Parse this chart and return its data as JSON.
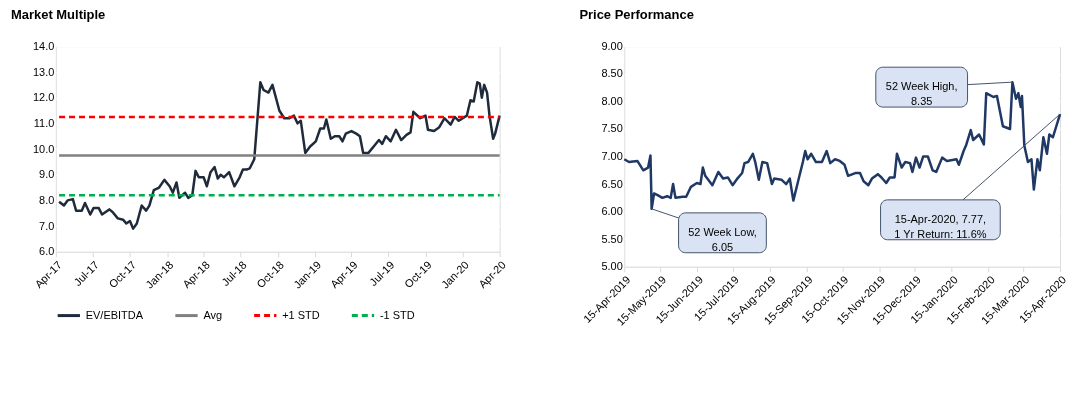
{
  "chart_data": [
    {
      "type": "line",
      "title": "Market Multiple",
      "x": [
        "2017-04-09",
        "2017-04-21",
        "2017-04-30",
        "2017-05-13",
        "2017-05-21",
        "2017-06-04",
        "2017-06-12",
        "2017-06-25",
        "2017-07-03",
        "2017-07-16",
        "2017-07-24",
        "2017-08-11",
        "2017-08-19",
        "2017-09-01",
        "2017-09-14",
        "2017-09-22",
        "2017-10-01",
        "2017-10-09",
        "2017-10-18",
        "2017-10-30",
        "2017-11-10",
        "2017-11-18",
        "2017-11-29",
        "2017-12-12",
        "2017-12-25",
        "2018-01-07",
        "2018-01-15",
        "2018-01-24",
        "2018-01-31",
        "2018-02-14",
        "2018-02-22",
        "2018-03-04",
        "2018-03-12",
        "2018-03-20",
        "2018-04-01",
        "2018-04-09",
        "2018-04-18",
        "2018-04-28",
        "2018-05-06",
        "2018-05-13",
        "2018-05-21",
        "2018-06-03",
        "2018-06-16",
        "2018-06-29",
        "2018-07-07",
        "2018-07-16",
        "2018-07-24",
        "2018-08-04",
        "2018-08-19",
        "2018-08-27",
        "2018-09-08",
        "2018-09-18",
        "2018-10-05",
        "2018-10-17",
        "2018-10-30",
        "2018-11-10",
        "2018-11-19",
        "2018-11-27",
        "2018-12-08",
        "2018-12-20",
        "2019-01-03",
        "2019-01-14",
        "2019-01-23",
        "2019-01-29",
        "2019-02-09",
        "2019-02-19",
        "2019-03-02",
        "2019-03-10",
        "2019-03-18",
        "2019-04-01",
        "2019-04-13",
        "2019-04-22",
        "2019-04-30",
        "2019-05-13",
        "2019-05-26",
        "2019-06-08",
        "2019-06-16",
        "2019-06-25",
        "2019-07-07",
        "2019-07-20",
        "2019-08-02",
        "2019-08-15",
        "2019-08-25",
        "2019-09-01",
        "2019-09-18",
        "2019-10-01",
        "2019-10-07",
        "2019-10-22",
        "2019-11-04",
        "2019-11-17",
        "2019-12-02",
        "2019-12-12",
        "2019-12-22",
        "2020-01-01",
        "2020-01-11",
        "2020-01-20",
        "2020-01-28",
        "2020-02-06",
        "2020-02-12",
        "2020-02-17",
        "2020-02-23",
        "2020-03-01",
        "2020-03-07",
        "2020-03-16",
        "2020-03-21",
        "2020-04-01"
      ],
      "series": [
        {
          "name": "EV/EBITDA",
          "color": "#1f2a3a",
          "line_style": "solid",
          "values": [
            7.95,
            7.8,
            8.0,
            8.05,
            7.6,
            7.6,
            7.9,
            7.45,
            7.7,
            7.7,
            7.45,
            7.65,
            7.55,
            7.3,
            7.25,
            7.1,
            7.2,
            6.9,
            7.1,
            7.8,
            7.6,
            7.8,
            8.4,
            8.5,
            8.8,
            8.55,
            8.3,
            8.7,
            8.1,
            8.3,
            8.1,
            8.2,
            9.15,
            8.9,
            8.9,
            8.55,
            9.1,
            9.3,
            8.85,
            9.0,
            8.9,
            9.1,
            8.55,
            8.9,
            9.2,
            9.2,
            9.25,
            9.6,
            12.6,
            12.3,
            12.2,
            12.5,
            11.5,
            11.2,
            11.2,
            11.3,
            11.0,
            11.1,
            9.85,
            10.1,
            10.3,
            10.8,
            10.8,
            11.15,
            10.4,
            10.5,
            10.5,
            10.3,
            10.6,
            10.7,
            10.6,
            10.5,
            9.85,
            9.85,
            10.1,
            10.35,
            10.2,
            10.5,
            10.3,
            10.75,
            10.35,
            10.55,
            10.65,
            11.45,
            11.2,
            11.3,
            10.75,
            10.7,
            10.85,
            11.2,
            10.95,
            11.25,
            11.1,
            11.2,
            11.3,
            11.9,
            11.85,
            12.6,
            12.55,
            12.0,
            12.5,
            12.2,
            11.3,
            10.4,
            10.6,
            11.3
          ]
        },
        {
          "name": "Avg",
          "color": "#808080",
          "line_style": "solid",
          "x": [
            "2017-04-09",
            "2020-04-01"
          ],
          "values": [
            9.75,
            9.75
          ]
        },
        {
          "name": "+1 STD",
          "color": "#ff0000",
          "line_style": "dashed",
          "x": [
            "2017-04-09",
            "2020-04-01"
          ],
          "values": [
            11.25,
            11.25
          ]
        },
        {
          "name": "-1 STD",
          "color": "#00b050",
          "line_style": "dashed",
          "x": [
            "2017-04-09",
            "2020-04-01"
          ],
          "values": [
            8.2,
            8.2
          ]
        }
      ],
      "xlim": [
        "2017-04-01",
        "2020-04-01"
      ],
      "xticks": [
        {
          "value": "2017-04-01",
          "label": "Apr-17"
        },
        {
          "value": "2017-07-01",
          "label": "Jul-17"
        },
        {
          "value": "2017-10-01",
          "label": "Oct-17"
        },
        {
          "value": "2018-01-01",
          "label": "Jan-18"
        },
        {
          "value": "2018-04-01",
          "label": "Apr-18"
        },
        {
          "value": "2018-07-01",
          "label": "Jul-18"
        },
        {
          "value": "2018-10-01",
          "label": "Oct-18"
        },
        {
          "value": "2019-01-01",
          "label": "Jan-19"
        },
        {
          "value": "2019-04-01",
          "label": "Apr-19"
        },
        {
          "value": "2019-07-01",
          "label": "Jul-19"
        },
        {
          "value": "2019-10-01",
          "label": "Oct-19"
        },
        {
          "value": "2020-01-01",
          "label": "Jan-20"
        },
        {
          "value": "2020-04-01",
          "label": "Apr-20"
        }
      ],
      "ylim": [
        6,
        14
      ],
      "yticks": [
        {
          "value": 6,
          "label": "6.0"
        },
        {
          "value": 7,
          "label": "7.0"
        },
        {
          "value": 8,
          "label": "8.0"
        },
        {
          "value": 9,
          "label": "9.0"
        },
        {
          "value": 10,
          "label": "10.0"
        },
        {
          "value": 11,
          "label": "11.0"
        },
        {
          "value": 12,
          "label": "12.0"
        },
        {
          "value": 13,
          "label": "13.0"
        },
        {
          "value": 14,
          "label": "14.0"
        }
      ],
      "grid": "y",
      "legend": "bottom",
      "marker": "none"
    },
    {
      "type": "line",
      "title": "Price Performance",
      "x": [
        "2019-04-15",
        "2019-04-19",
        "2019-04-26",
        "2019-05-01",
        "2019-05-05",
        "2019-05-07",
        "2019-05-08",
        "2019-05-10",
        "2019-05-13",
        "2019-05-17",
        "2019-05-21",
        "2019-05-24",
        "2019-05-26",
        "2019-05-28",
        "2019-06-03",
        "2019-06-06",
        "2019-06-10",
        "2019-06-15",
        "2019-06-18",
        "2019-06-20",
        "2019-06-22",
        "2019-06-28",
        "2019-07-03",
        "2019-07-07",
        "2019-07-11",
        "2019-07-15",
        "2019-07-19",
        "2019-07-23",
        "2019-07-25",
        "2019-07-28",
        "2019-08-01",
        "2019-08-03",
        "2019-08-06",
        "2019-08-09",
        "2019-08-13",
        "2019-08-17",
        "2019-08-19",
        "2019-08-25",
        "2019-08-29",
        "2019-09-01",
        "2019-09-04",
        "2019-09-08",
        "2019-09-12",
        "2019-09-14",
        "2019-09-16",
        "2019-09-19",
        "2019-09-23",
        "2019-09-28",
        "2019-10-02",
        "2019-10-05",
        "2019-10-09",
        "2019-10-13",
        "2019-10-17",
        "2019-10-20",
        "2019-10-26",
        "2019-10-30",
        "2019-11-02",
        "2019-11-06",
        "2019-11-09",
        "2019-11-14",
        "2019-11-17",
        "2019-11-21",
        "2019-11-24",
        "2019-11-28",
        "2019-11-30",
        "2019-12-04",
        "2019-12-07",
        "2019-12-11",
        "2019-12-13",
        "2019-12-16",
        "2019-12-19",
        "2019-12-22",
        "2019-12-26",
        "2019-12-30",
        "2020-01-02",
        "2020-01-07",
        "2020-01-11",
        "2020-01-19",
        "2020-01-21",
        "2020-01-25",
        "2020-01-27",
        "2020-01-31",
        "2020-02-02",
        "2020-02-07",
        "2020-02-11",
        "2020-02-13",
        "2020-02-19",
        "2020-02-22",
        "2020-02-27",
        "2020-03-04",
        "2020-03-06",
        "2020-03-09",
        "2020-03-11",
        "2020-03-13",
        "2020-03-14",
        "2020-03-16",
        "2020-03-19",
        "2020-03-22",
        "2020-03-24",
        "2020-03-27",
        "2020-03-29",
        "2020-04-01",
        "2020-04-04",
        "2020-04-06",
        "2020-04-09",
        "2020-04-15"
      ],
      "series": [
        {
          "color": "#203864",
          "values": [
            6.95,
            6.9,
            6.92,
            6.75,
            6.8,
            7.02,
            6.05,
            6.33,
            6.3,
            6.25,
            6.28,
            6.25,
            6.5,
            6.25,
            6.27,
            6.27,
            6.45,
            6.52,
            6.5,
            6.8,
            6.65,
            6.48,
            6.72,
            6.6,
            6.62,
            6.48,
            6.6,
            6.7,
            6.88,
            6.9,
            7.05,
            6.9,
            6.58,
            6.9,
            6.88,
            6.5,
            6.6,
            6.58,
            6.5,
            6.6,
            6.2,
            6.55,
            6.9,
            7.1,
            6.95,
            7.05,
            6.9,
            6.9,
            7.1,
            6.88,
            6.95,
            6.92,
            6.85,
            6.65,
            6.7,
            6.7,
            6.55,
            6.48,
            6.6,
            6.68,
            6.62,
            6.52,
            6.62,
            6.62,
            7.05,
            6.8,
            6.9,
            6.88,
            6.72,
            6.98,
            6.8,
            7.0,
            7.0,
            6.75,
            6.72,
            6.98,
            6.92,
            6.95,
            6.85,
            7.1,
            7.2,
            7.48,
            7.3,
            7.4,
            7.22,
            8.15,
            8.08,
            8.1,
            7.55,
            7.5,
            8.35,
            8.05,
            8.15,
            7.9,
            8.1,
            7.2,
            6.9,
            6.95,
            6.4,
            6.95,
            6.75,
            7.35,
            7.05,
            7.4,
            7.35,
            7.77
          ]
        }
      ],
      "xlim": [
        "2019-04-15",
        "2020-04-15"
      ],
      "xticks": [
        {
          "value": "2019-04-15",
          "label": "15-Apr-2019"
        },
        {
          "value": "2019-05-15",
          "label": "15-May-2019"
        },
        {
          "value": "2019-06-15",
          "label": "15-Jun-2019"
        },
        {
          "value": "2019-07-15",
          "label": "15-Jul-2019"
        },
        {
          "value": "2019-08-15",
          "label": "15-Aug-2019"
        },
        {
          "value": "2019-09-15",
          "label": "15-Sep-2019"
        },
        {
          "value": "2019-10-15",
          "label": "15-Oct-2019"
        },
        {
          "value": "2019-11-15",
          "label": "15-Nov-2019"
        },
        {
          "value": "2019-12-15",
          "label": "15-Dec-2019"
        },
        {
          "value": "2020-01-15",
          "label": "15-Jan-2020"
        },
        {
          "value": "2020-02-15",
          "label": "15-Feb-2020"
        },
        {
          "value": "2020-03-15",
          "label": "15-Mar-2020"
        },
        {
          "value": "2020-04-15",
          "label": "15-Apr-2020"
        }
      ],
      "ylim": [
        5,
        9
      ],
      "yticks": [
        {
          "value": 5,
          "label": "5.00"
        },
        {
          "value": 5.5,
          "label": "5.50"
        },
        {
          "value": 6,
          "label": "6.00"
        },
        {
          "value": 6.5,
          "label": "6.50"
        },
        {
          "value": 7,
          "label": "7.00"
        },
        {
          "value": 7.5,
          "label": "7.50"
        },
        {
          "value": 8,
          "label": "8.00"
        },
        {
          "value": 8.5,
          "label": "8.50"
        },
        {
          "value": 9,
          "label": "9.00"
        }
      ],
      "annotations": [
        {
          "text": "52 Week High,\n8.35",
          "x": "2020-03-06",
          "y": 8.35
        },
        {
          "text": "52 Week Low,\n6.05",
          "x": "2019-05-08",
          "y": 6.05
        },
        {
          "text": "15-Apr-2020, 7.77,\n1 Yr Return: 11.6%",
          "x": "2020-04-15",
          "y": 7.77
        }
      ],
      "grid": "y",
      "marker": "none"
    }
  ]
}
